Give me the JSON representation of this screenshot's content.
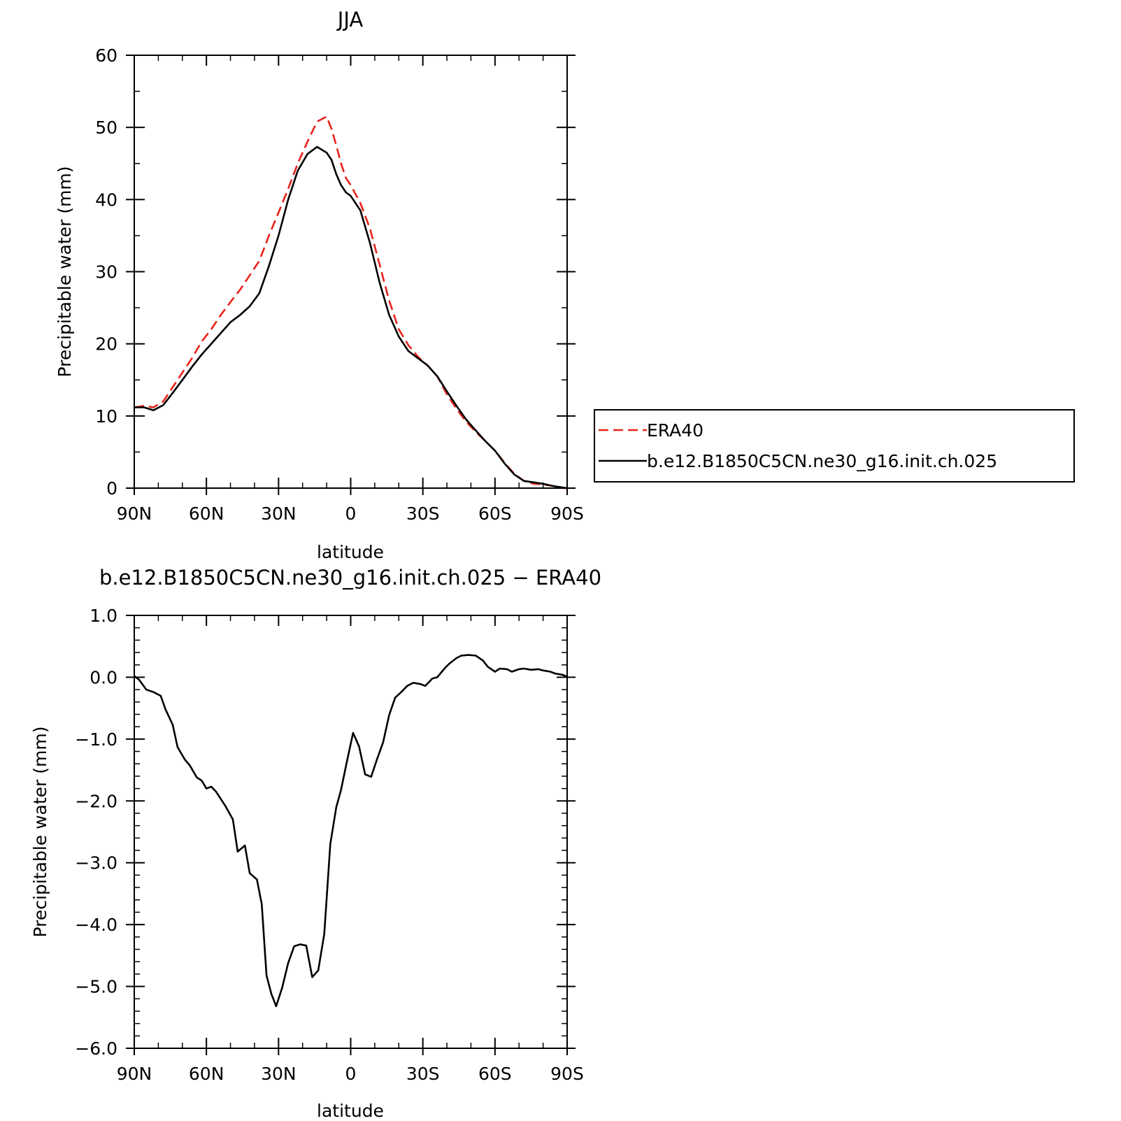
{
  "chart_data": [
    {
      "type": "line",
      "title": "JJA",
      "xlabel": "latitude",
      "ylabel": "Precipitable water (mm)",
      "xlim": [
        90,
        -90
      ],
      "ylim": [
        0,
        60
      ],
      "x_ticks": [
        90,
        60,
        30,
        0,
        -30,
        -60,
        -90
      ],
      "x_tick_labels": [
        "90N",
        "60N",
        "30N",
        "0",
        "30S",
        "60S",
        "90S"
      ],
      "y_ticks": [
        0,
        10,
        20,
        30,
        40,
        50,
        60
      ],
      "y_tick_labels": [
        "0",
        "10",
        "20",
        "30",
        "40",
        "50",
        "60"
      ],
      "grid": false,
      "legend_position": "right",
      "series": [
        {
          "name": "ERA40",
          "color": "#e8221b",
          "dash": "dashed",
          "x": [
            90,
            86,
            82,
            78,
            74,
            70,
            66,
            62,
            58,
            54,
            50,
            46,
            42,
            38,
            34,
            30,
            26,
            22,
            18,
            14,
            10,
            8,
            6,
            4,
            2,
            0,
            -4,
            -8,
            -12,
            -16,
            -20,
            -24,
            -28,
            -32,
            -36,
            -40,
            -44,
            -48,
            -52,
            -56,
            -60,
            -64,
            -68,
            -72,
            -76,
            -80,
            -84,
            -88,
            -90
          ],
          "y": [
            11.2,
            11.4,
            11.2,
            12.0,
            14.0,
            16.0,
            18.0,
            20.3,
            22.0,
            24.0,
            25.8,
            27.5,
            29.5,
            31.5,
            35.0,
            38.2,
            41.5,
            45.0,
            48.0,
            50.8,
            51.5,
            49.8,
            47.5,
            45.0,
            43.0,
            42.0,
            39.5,
            36.0,
            31.0,
            26.0,
            22.0,
            19.8,
            18.2,
            17.0,
            15.5,
            13.0,
            11.0,
            9.2,
            7.8,
            6.5,
            5.2,
            3.5,
            2.0,
            1.0,
            0.6,
            0.5,
            0.3,
            0.0,
            0.0
          ]
        },
        {
          "name": "b.e12.B1850C5CN.ne30_g16.init.ch.025",
          "color": "#000000",
          "dash": "solid",
          "x": [
            90,
            86,
            82,
            78,
            74,
            70,
            66,
            62,
            58,
            54,
            50,
            46,
            42,
            38,
            34,
            30,
            26,
            22,
            18,
            14,
            10,
            8,
            6,
            4,
            2,
            0,
            -4,
            -8,
            -12,
            -16,
            -20,
            -24,
            -28,
            -32,
            -36,
            -40,
            -44,
            -48,
            -52,
            -56,
            -60,
            -64,
            -68,
            -72,
            -76,
            -80,
            -84,
            -88,
            -90
          ],
          "y": [
            11.2,
            11.2,
            10.8,
            11.5,
            13.2,
            15.0,
            16.8,
            18.5,
            20.0,
            21.5,
            23.0,
            24.0,
            25.2,
            27.0,
            30.8,
            35.0,
            40.0,
            44.0,
            46.3,
            47.3,
            46.5,
            45.5,
            43.5,
            42.0,
            41.0,
            40.5,
            38.5,
            34.0,
            28.5,
            24.0,
            21.0,
            19.0,
            18.0,
            17.0,
            15.5,
            13.4,
            11.4,
            9.5,
            8.0,
            6.5,
            5.2,
            3.4,
            1.9,
            1.0,
            0.8,
            0.6,
            0.3,
            0.1,
            0.0
          ]
        }
      ]
    },
    {
      "type": "line",
      "title": "b.e12.B1850C5CN.ne30_g16.init.ch.025 − ERA40",
      "xlabel": "latitude",
      "ylabel": "Precipitable water (mm)",
      "xlim": [
        90,
        -90
      ],
      "ylim": [
        -6.0,
        1.0
      ],
      "x_ticks": [
        90,
        60,
        30,
        0,
        -30,
        -60,
        -90
      ],
      "x_tick_labels": [
        "90N",
        "60N",
        "30N",
        "0",
        "30S",
        "60S",
        "90S"
      ],
      "y_ticks": [
        1.0,
        0.0,
        -1.0,
        -2.0,
        -3.0,
        -4.0,
        -5.0,
        -6.0
      ],
      "y_tick_labels": [
        "1.0",
        "0.0",
        "−1.0",
        "−2.0",
        "−3.0",
        "−4.0",
        "−5.0",
        "−6.0"
      ],
      "grid": false,
      "series": [
        {
          "color": "#000000",
          "dash": "solid",
          "x": [
            90,
            88,
            85,
            82,
            79,
            77,
            74,
            72,
            69,
            67,
            64,
            62,
            60,
            58,
            56,
            54,
            52,
            49,
            47,
            44,
            42,
            39,
            37,
            35,
            33,
            31,
            28.5,
            26,
            23.5,
            21,
            18.5,
            16,
            13.5,
            11,
            8.5,
            6,
            4,
            1.5,
            -1,
            -3.5,
            -6,
            -8.5,
            -11,
            -13.5,
            -16,
            -18.5,
            -21,
            -23.5,
            -26,
            -29,
            -31,
            -34,
            -36,
            -39,
            -41,
            -44,
            -46,
            -49,
            -52,
            -55,
            -57,
            -60,
            -62,
            -65,
            -67,
            -70,
            -72,
            -75,
            -78,
            -80,
            -83,
            -85,
            -88,
            -90
          ],
          "y": [
            0.02,
            -0.04,
            -0.2,
            -0.24,
            -0.3,
            -0.52,
            -0.77,
            -1.13,
            -1.33,
            -1.42,
            -1.62,
            -1.67,
            -1.8,
            -1.77,
            -1.85,
            -1.97,
            -2.09,
            -2.3,
            -2.82,
            -2.72,
            -3.17,
            -3.27,
            -3.67,
            -4.82,
            -5.12,
            -5.32,
            -5.02,
            -4.62,
            -4.35,
            -4.32,
            -4.34,
            -4.85,
            -4.74,
            -4.15,
            -2.7,
            -2.1,
            -1.82,
            -1.35,
            -0.9,
            -1.12,
            -1.57,
            -1.61,
            -1.32,
            -1.05,
            -0.61,
            -0.33,
            -0.24,
            -0.14,
            -0.09,
            -0.11,
            -0.14,
            -0.02,
            0.0,
            0.14,
            0.22,
            0.31,
            0.35,
            0.36,
            0.35,
            0.27,
            0.17,
            0.09,
            0.14,
            0.13,
            0.09,
            0.13,
            0.14,
            0.12,
            0.13,
            0.11,
            0.09,
            0.06,
            0.04,
            0.01
          ]
        }
      ]
    }
  ]
}
